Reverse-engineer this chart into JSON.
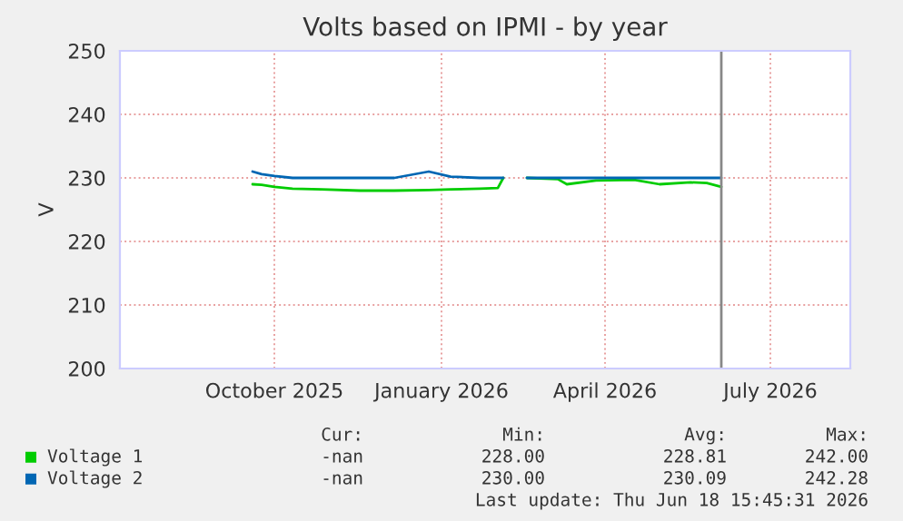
{
  "chart_data": {
    "type": "line",
    "title": "Volts based on IPMI - by year",
    "ylabel": "V",
    "x": [
      "2025-10-03",
      "2025-10-08",
      "2025-10-15",
      "2025-10-25",
      "2025-11-10",
      "2025-12-01",
      "2025-12-20",
      "2026-01-08",
      "2026-01-20",
      "2026-02-05",
      "2026-02-15",
      "2026-02-18",
      "2026-02-24",
      "2026-03-03",
      "2026-03-20",
      "2026-03-25",
      "2026-04-10",
      "2026-05-01",
      "2026-05-15",
      "2026-06-01",
      "2026-06-10",
      "2026-06-18"
    ],
    "series": [
      {
        "name": "Voltage 1",
        "color": "#00cc00",
        "values": [
          229.0,
          228.9,
          228.6,
          228.3,
          228.2,
          228.0,
          228.0,
          228.1,
          228.2,
          228.3,
          228.4,
          230.0,
          null,
          230.0,
          229.8,
          229.0,
          229.6,
          229.7,
          229.0,
          229.3,
          229.2,
          228.6
        ]
      },
      {
        "name": "Voltage 2",
        "color": "#0066b3",
        "values": [
          231.0,
          230.6,
          230.3,
          230.0,
          230.0,
          230.0,
          230.0,
          231.0,
          230.2,
          230.0,
          230.0,
          230.0,
          null,
          230.0,
          230.0,
          230.0,
          230.0,
          230.0,
          230.0,
          230.0,
          230.0,
          230.0
        ]
      }
    ],
    "xlim": [
      "2025-07-22",
      "2026-08-28"
    ],
    "xticks": [
      {
        "value": "2025-10-15",
        "label": "October 2025"
      },
      {
        "value": "2026-01-15",
        "label": "January 2026"
      },
      {
        "value": "2026-04-15",
        "label": "April 2026"
      },
      {
        "value": "2026-07-15",
        "label": "July 2026"
      }
    ],
    "ylim": [
      200,
      250
    ],
    "yticks": [
      200,
      210,
      220,
      230,
      240,
      250
    ],
    "grid": true,
    "legend": "bottom",
    "line_style": "solid",
    "ref_lines": [
      {
        "axis": "x",
        "value": "2026-06-18",
        "color": "#888888"
      }
    ],
    "annotations": [
      "Cur:",
      "Min:",
      "Avg:",
      "Max:",
      "-nan",
      "228.00",
      "228.81",
      "242.00",
      "-nan",
      "230.00",
      "230.09",
      "242.28",
      "Last update: Thu Jun 18 15:45:31 2026"
    ]
  }
}
